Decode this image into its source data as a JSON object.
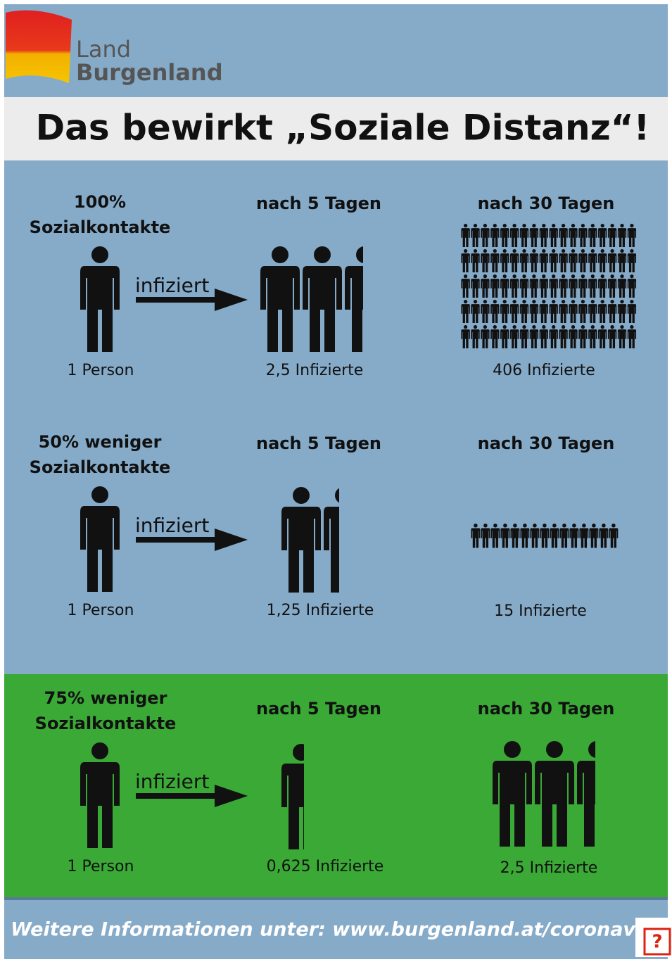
{
  "header": {
    "logo_line1": "Land",
    "logo_line2": "Burgenland"
  },
  "title": "Das bewirkt „Soziale Distanz“!",
  "rows": [
    {
      "scenario": [
        "100%",
        "Sozialkontakte"
      ],
      "arrow_label": "infiziert",
      "start_label": "1 Person",
      "col2_heading": "nach 5 Tagen",
      "col2_result": "2,5 Infizierte",
      "col3_heading": "nach 30 Tagen",
      "col3_result": "406 Infizierte"
    },
    {
      "scenario": [
        "50% weniger",
        "Sozialkontakte"
      ],
      "arrow_label": "infiziert",
      "start_label": "1 Person",
      "col2_heading": "nach 5 Tagen",
      "col2_result": "1,25 Infizierte",
      "col3_heading": "nach 30 Tagen",
      "col3_result": "15 Infizierte"
    },
    {
      "scenario": [
        "75% weniger",
        "Sozialkontakte"
      ],
      "arrow_label": "infiziert",
      "start_label": "1 Person",
      "col2_heading": "nach 5 Tagen",
      "col2_result": "0,625 Infizierte",
      "col3_heading": "nach 30 Tagen",
      "col3_result": "2,5 Infizierte"
    }
  ],
  "footer": "Weitere Informationen unter: www.burgenland.at/coronavirus",
  "help_icon": "?"
}
